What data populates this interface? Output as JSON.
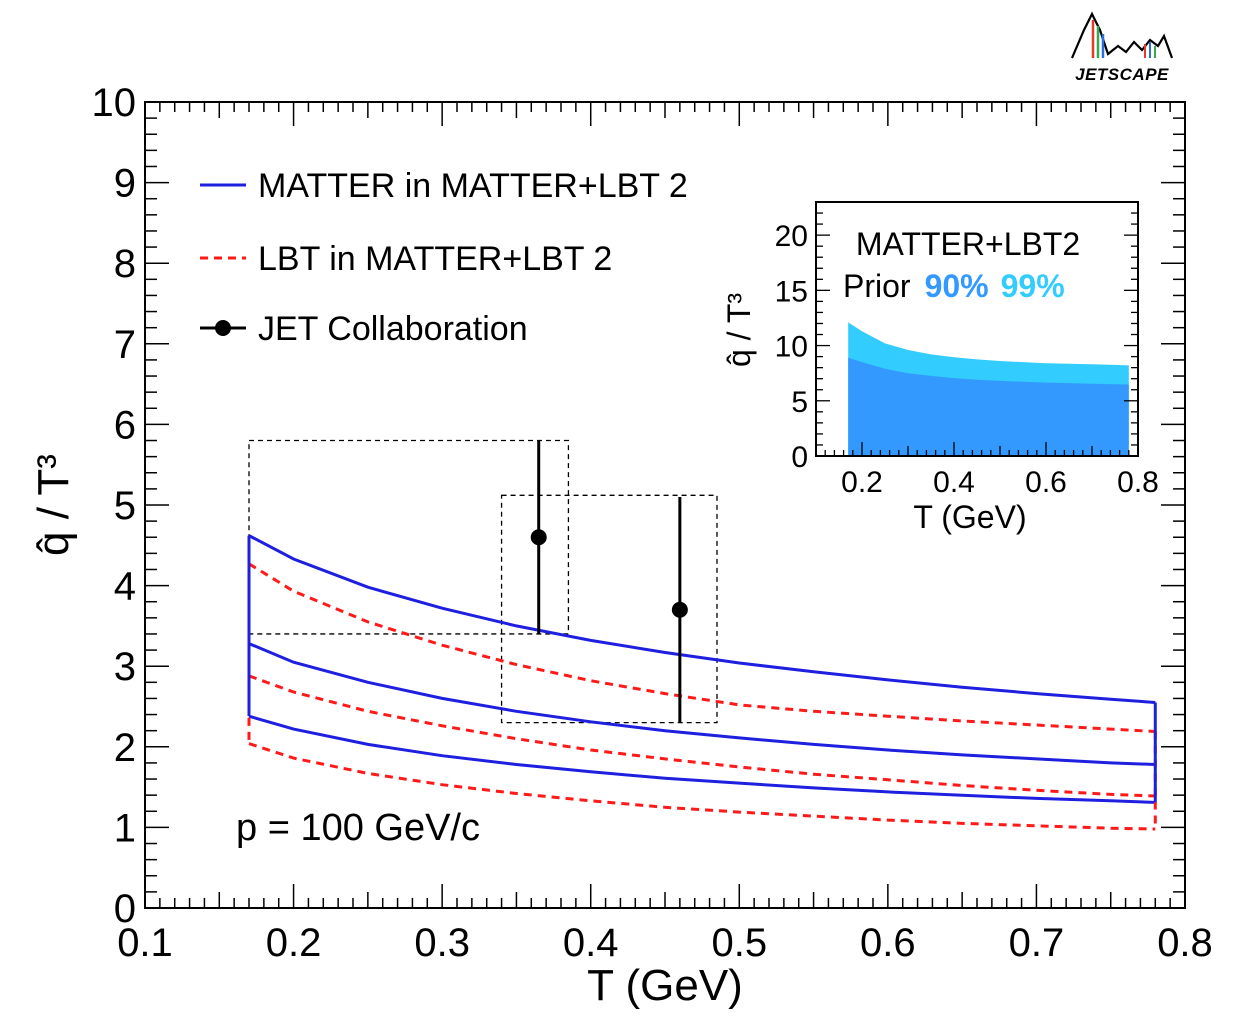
{
  "logo": {
    "text": "JETSCAPE"
  },
  "chart_data": [
    {
      "type": "line",
      "title": "",
      "xlabel": "T (GeV)",
      "ylabel": "q̂ / T³",
      "xlim": [
        0.1,
        0.8
      ],
      "ylim": [
        0,
        10
      ],
      "x_ticks": [
        "0.1",
        "0.2",
        "0.3",
        "0.4",
        "0.5",
        "0.6",
        "0.7",
        "0.8"
      ],
      "y_ticks": [
        "0",
        "1",
        "2",
        "3",
        "4",
        "5",
        "6",
        "7",
        "8",
        "9",
        "10"
      ],
      "annotation": "p = 100 GeV/c",
      "legend": {
        "position": "top-left",
        "entries": [
          {
            "label": "MATTER in MATTER+LBT 2",
            "style": "solid",
            "color": "#1f1fe0"
          },
          {
            "label": "LBT in MATTER+LBT 2",
            "style": "dashed",
            "color": "#ff1a1a"
          },
          {
            "label": "JET Collaboration",
            "style": "marker",
            "color": "#000000"
          }
        ]
      },
      "series": [
        {
          "name": "MATTER in MATTER+LBT 2 (upper)",
          "color": "#1f1fe0",
          "style": "solid",
          "x": [
            0.17,
            0.2,
            0.25,
            0.3,
            0.35,
            0.4,
            0.45,
            0.5,
            0.55,
            0.6,
            0.65,
            0.7,
            0.75,
            0.78
          ],
          "y": [
            4.62,
            4.33,
            3.98,
            3.72,
            3.5,
            3.32,
            3.17,
            3.04,
            2.93,
            2.83,
            2.74,
            2.66,
            2.59,
            2.55
          ]
        },
        {
          "name": "MATTER in MATTER+LBT 2 (median)",
          "color": "#1f1fe0",
          "style": "solid",
          "x": [
            0.17,
            0.2,
            0.25,
            0.3,
            0.35,
            0.4,
            0.45,
            0.5,
            0.55,
            0.6,
            0.65,
            0.7,
            0.75,
            0.78
          ],
          "y": [
            3.28,
            3.05,
            2.8,
            2.6,
            2.44,
            2.31,
            2.2,
            2.11,
            2.03,
            1.96,
            1.9,
            1.85,
            1.8,
            1.78
          ]
        },
        {
          "name": "MATTER in MATTER+LBT 2 (lower)",
          "color": "#1f1fe0",
          "style": "solid",
          "x": [
            0.17,
            0.2,
            0.25,
            0.3,
            0.35,
            0.4,
            0.45,
            0.5,
            0.55,
            0.6,
            0.65,
            0.7,
            0.75,
            0.78
          ],
          "y": [
            2.38,
            2.22,
            2.03,
            1.89,
            1.78,
            1.69,
            1.61,
            1.55,
            1.49,
            1.44,
            1.4,
            1.36,
            1.33,
            1.31
          ]
        },
        {
          "name": "LBT in MATTER+LBT 2 (upper)",
          "color": "#ff1a1a",
          "style": "dashed",
          "x": [
            0.17,
            0.2,
            0.25,
            0.3,
            0.35,
            0.4,
            0.45,
            0.5,
            0.55,
            0.6,
            0.65,
            0.7,
            0.75,
            0.78
          ],
          "y": [
            4.27,
            3.93,
            3.55,
            3.26,
            3.02,
            2.82,
            2.66,
            2.52,
            2.44,
            2.38,
            2.32,
            2.27,
            2.22,
            2.19
          ]
        },
        {
          "name": "LBT in MATTER+LBT 2 (median)",
          "color": "#ff1a1a",
          "style": "dashed",
          "x": [
            0.17,
            0.2,
            0.25,
            0.3,
            0.35,
            0.4,
            0.45,
            0.5,
            0.55,
            0.6,
            0.65,
            0.7,
            0.75,
            0.78
          ],
          "y": [
            2.88,
            2.68,
            2.44,
            2.26,
            2.1,
            1.96,
            1.85,
            1.75,
            1.66,
            1.59,
            1.52,
            1.46,
            1.41,
            1.39
          ]
        },
        {
          "name": "LBT in MATTER+LBT 2 (lower)",
          "color": "#ff1a1a",
          "style": "dashed",
          "x": [
            0.17,
            0.2,
            0.25,
            0.3,
            0.35,
            0.4,
            0.45,
            0.5,
            0.55,
            0.6,
            0.65,
            0.7,
            0.75,
            0.78
          ],
          "y": [
            2.04,
            1.86,
            1.67,
            1.53,
            1.42,
            1.33,
            1.25,
            1.19,
            1.14,
            1.09,
            1.05,
            1.02,
            0.99,
            0.98
          ]
        }
      ],
      "points": {
        "name": "JET Collaboration",
        "x": [
          0.365,
          0.46
        ],
        "y": [
          4.6,
          3.7
        ],
        "y_err_low": [
          3.4,
          2.3
        ],
        "y_err_high": [
          5.8,
          5.1
        ],
        "boxes": [
          {
            "x0": 0.17,
            "x1": 0.385,
            "y0": 3.4,
            "y1": 5.8
          },
          {
            "x0": 0.34,
            "x1": 0.485,
            "y0": 2.3,
            "y1": 5.12
          }
        ]
      }
    },
    {
      "type": "area",
      "title": "MATTER+LBT2",
      "xlabel": "T (GeV)",
      "ylabel": "q̂ / T³",
      "xlim": [
        0.1,
        0.8
      ],
      "ylim": [
        0,
        23
      ],
      "x_ticks": [
        "0.2",
        "0.4",
        "0.6",
        "0.8"
      ],
      "y_ticks": [
        "0",
        "5",
        "10",
        "15",
        "20"
      ],
      "legend": {
        "prefix": "Prior",
        "entries": [
          {
            "label": "90%",
            "color": "#3399ff"
          },
          {
            "label": "99%",
            "color": "#33ccff"
          }
        ]
      },
      "series": [
        {
          "name": "99%",
          "color": "#33ccff",
          "x": [
            0.17,
            0.2,
            0.25,
            0.3,
            0.35,
            0.4,
            0.45,
            0.5,
            0.55,
            0.6,
            0.65,
            0.7,
            0.75,
            0.78
          ],
          "y": [
            12.1,
            11.3,
            10.2,
            9.6,
            9.2,
            8.95,
            8.75,
            8.6,
            8.5,
            8.4,
            8.35,
            8.3,
            8.25,
            8.2
          ]
        },
        {
          "name": "90%",
          "color": "#3399ff",
          "x": [
            0.17,
            0.2,
            0.25,
            0.3,
            0.35,
            0.4,
            0.45,
            0.5,
            0.55,
            0.6,
            0.65,
            0.7,
            0.75,
            0.78
          ],
          "y": [
            8.9,
            8.5,
            7.9,
            7.5,
            7.25,
            7.05,
            6.9,
            6.8,
            6.72,
            6.65,
            6.6,
            6.55,
            6.5,
            6.47
          ]
        }
      ]
    }
  ]
}
